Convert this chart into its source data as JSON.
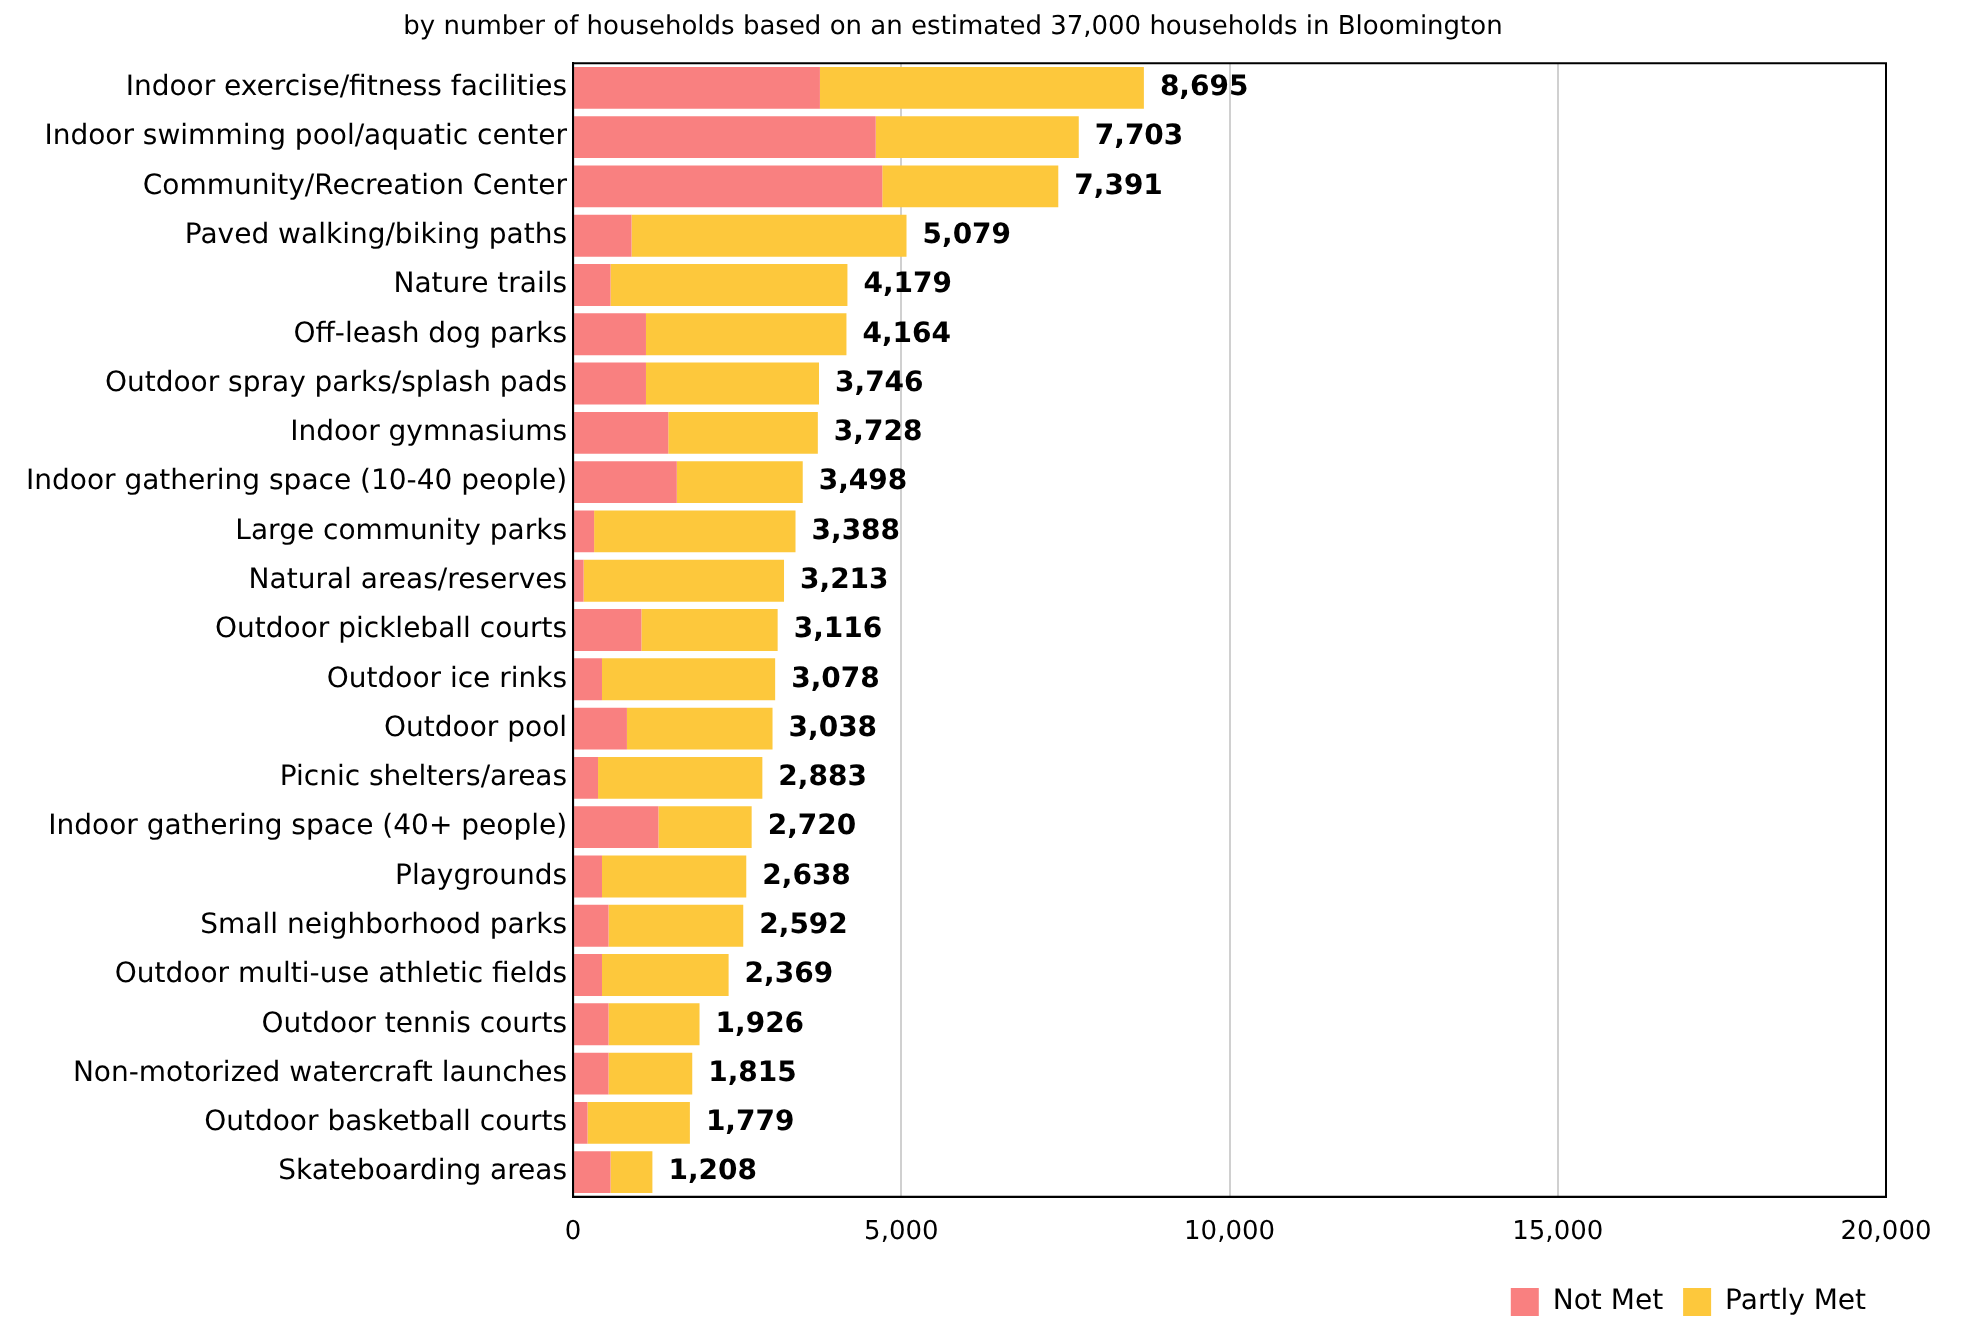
{
  "chart_data": {
    "type": "bar",
    "orientation": "horizontal",
    "stacked": true,
    "subtitle": "by number of households based on an estimated 37,000 households in Bloomington",
    "categories": [
      "Indoor exercise/fitness facilities",
      "Indoor swimming pool/aquatic center",
      "Community/Recreation Center",
      "Paved walking/biking paths",
      "Nature trails",
      "Off-leash dog parks",
      "Outdoor spray parks/splash pads",
      "Indoor gymnasiums",
      "Indoor gathering space (10-40 people)",
      "Large community parks",
      "Natural areas/reserves",
      "Outdoor pickleball courts",
      "Outdoor ice rinks",
      "Outdoor pool",
      "Picnic shelters/areas",
      "Indoor gathering space (40+ people)",
      "Playgrounds",
      "Small neighborhood parks",
      "Outdoor multi-use athletic fields",
      "Outdoor tennis courts",
      "Non-motorized watercraft launches",
      "Outdoor basketball courts",
      "Skateboarding areas"
    ],
    "series": [
      {
        "name": "Not Met",
        "color": "#f98080",
        "values": [
          3760,
          4610,
          4710,
          890,
          570,
          1110,
          1110,
          1450,
          1580,
          320,
          160,
          1040,
          440,
          820,
          380,
          1300,
          440,
          540,
          440,
          540,
          540,
          220,
          570
        ]
      },
      {
        "name": "Partly Met",
        "color": "#fdc83c",
        "values": [
          4935,
          3093,
          2681,
          4189,
          3609,
          3054,
          2636,
          2278,
          1918,
          3068,
          3053,
          2076,
          2638,
          2218,
          2503,
          1420,
          2198,
          2052,
          1929,
          1386,
          1275,
          1559,
          638
        ]
      }
    ],
    "totals": [
      "8,695",
      "7,703",
      "7,391",
      "5,079",
      "4,179",
      "4,164",
      "3,746",
      "3,728",
      "3,498",
      "3,388",
      "3,213",
      "3,116",
      "3,078",
      "3,038",
      "2,883",
      "2,720",
      "2,638",
      "2,592",
      "2,369",
      "1,926",
      "1,815",
      "1,779",
      "1,208"
    ],
    "xlim": [
      0,
      20000
    ],
    "xticks": [
      {
        "value": 0,
        "label": "0"
      },
      {
        "value": 5000,
        "label": "5,000"
      },
      {
        "value": 10000,
        "label": "10,000"
      },
      {
        "value": 15000,
        "label": "15,000"
      },
      {
        "value": 20000,
        "label": "20,000"
      }
    ],
    "grid": "x",
    "legend": "bottom right"
  }
}
